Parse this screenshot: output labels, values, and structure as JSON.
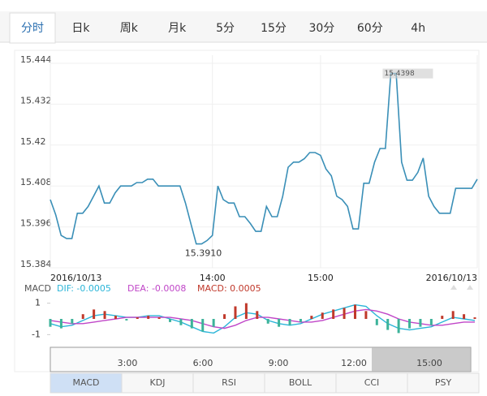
{
  "tabs": [
    "分时",
    "日k",
    "周k",
    "月k",
    "5分",
    "15分",
    "30分",
    "60分",
    "4h"
  ],
  "selected_tab": 0,
  "chart_data": [
    {
      "type": "line",
      "categories": [
        "2016/10/13",
        null,
        null,
        null,
        null,
        null,
        null,
        null,
        null,
        null,
        null,
        null,
        null,
        null,
        null,
        null,
        null,
        null,
        null,
        null,
        null,
        null,
        null,
        null,
        null,
        null,
        null,
        null,
        null,
        null,
        "14:00",
        null,
        null,
        null,
        null,
        null,
        null,
        null,
        null,
        null,
        null,
        null,
        null,
        null,
        null,
        null,
        null,
        null,
        null,
        null,
        "15:00",
        null,
        null,
        null,
        null,
        null,
        null,
        null,
        null,
        null,
        null,
        null,
        null,
        null,
        null,
        null,
        null,
        null,
        null,
        null,
        null,
        null,
        null,
        null,
        null,
        null,
        null,
        null,
        null,
        "2016/10/13"
      ],
      "values": [
        15.404,
        15.3995,
        15.3935,
        15.3926,
        15.3926,
        15.4,
        15.4,
        15.402,
        15.405,
        15.408,
        15.403,
        15.403,
        15.406,
        15.408,
        15.408,
        15.408,
        15.409,
        15.409,
        15.41,
        15.41,
        15.408,
        15.408,
        15.408,
        15.408,
        15.408,
        15.403,
        15.397,
        15.391,
        15.391,
        15.392,
        15.3935,
        15.408,
        15.404,
        15.403,
        15.403,
        15.399,
        15.399,
        15.397,
        15.3947,
        15.3947,
        15.402,
        15.399,
        15.399,
        15.405,
        15.4135,
        15.415,
        15.415,
        15.416,
        15.4178,
        15.4178,
        15.417,
        15.413,
        15.411,
        15.405,
        15.404,
        15.402,
        15.3954,
        15.3954,
        15.4088,
        15.4088,
        15.415,
        15.419,
        15.419,
        15.441,
        15.441,
        15.415,
        15.4097,
        15.4097,
        15.412,
        15.4162,
        15.405,
        15.402,
        15.4,
        15.4,
        15.4,
        15.4073,
        15.4073,
        15.4073,
        15.4073,
        15.41
      ],
      "color": "#3a8fb7",
      "annotations": [
        "15.3910",
        "15.4398"
      ],
      "ylim": [
        15.384,
        15.444
      ],
      "yticks": [
        15.384,
        15.396,
        15.408,
        15.42,
        15.432,
        15.444
      ],
      "grid": true
    },
    {
      "type": "macd",
      "title": "MACD",
      "ylim": [
        -1.6,
        1.6
      ],
      "yticks": [
        1,
        -1
      ],
      "series": [
        {
          "name": "DIF: -0.0005",
          "color": "#2bb5d8",
          "values": [
            -0.3,
            -0.5,
            -0.4,
            -0.1,
            0.2,
            0.3,
            0.2,
            0.1,
            0.1,
            0.2,
            0.2,
            0.0,
            -0.2,
            -0.5,
            -0.8,
            -0.9,
            -0.5,
            0.1,
            0.4,
            0.3,
            -0.1,
            -0.3,
            -0.4,
            -0.3,
            0.0,
            0.3,
            0.5,
            0.7,
            0.9,
            0.8,
            0.2,
            -0.3,
            -0.6,
            -0.7,
            -0.6,
            -0.5,
            -0.2,
            0.1,
            0.0,
            -0.1
          ]
        },
        {
          "name": "DEA: -0.0008",
          "color": "#c046c8",
          "values": [
            -0.1,
            -0.2,
            -0.3,
            -0.3,
            -0.2,
            -0.1,
            0.0,
            0.1,
            0.1,
            0.1,
            0.1,
            0.1,
            0.0,
            -0.1,
            -0.3,
            -0.5,
            -0.6,
            -0.4,
            -0.1,
            0.1,
            0.1,
            0.0,
            -0.1,
            -0.2,
            -0.2,
            -0.1,
            0.1,
            0.3,
            0.5,
            0.6,
            0.5,
            0.3,
            0.0,
            -0.2,
            -0.3,
            -0.4,
            -0.4,
            -0.3,
            -0.2,
            -0.2
          ]
        },
        {
          "name": "MACD: 0.0005",
          "color": "#c0392b",
          "negative_color": "#3cb39a",
          "values": [
            -0.5,
            -0.6,
            -0.3,
            0.3,
            0.6,
            0.5,
            0.2,
            -0.1,
            0.1,
            0.2,
            0.1,
            -0.2,
            -0.4,
            -0.6,
            -0.8,
            -0.5,
            0.3,
            0.8,
            1.0,
            0.5,
            -0.3,
            -0.5,
            -0.4,
            -0.2,
            0.2,
            0.4,
            0.6,
            0.7,
            0.9,
            0.5,
            -0.4,
            -0.7,
            -0.9,
            -0.6,
            -0.5,
            -0.4,
            0.2,
            0.5,
            0.3,
            0.1
          ]
        }
      ]
    }
  ],
  "navigator": {
    "labels": [
      "3:00",
      "6:00",
      "9:00",
      "12:00",
      "15:00"
    ]
  },
  "indicator_tabs": [
    "MACD",
    "KDJ",
    "RSI",
    "BOLL",
    "CCI",
    "PSY"
  ],
  "selected_indicator": 0
}
